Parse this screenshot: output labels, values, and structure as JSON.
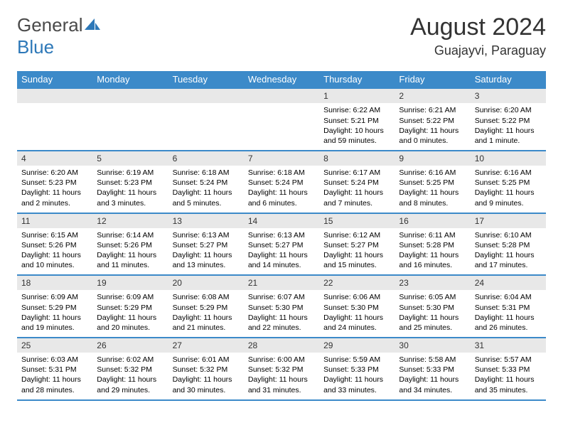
{
  "brand": {
    "part1": "General",
    "part2": "Blue"
  },
  "title": "August 2024",
  "location": "Guajayvi, Paraguay",
  "colors": {
    "header_bg": "#3c8ac9",
    "header_text": "#ffffff",
    "daynum_bg": "#e8e8e8",
    "border": "#3c8ac9",
    "logo_gray": "#4a4a4a",
    "logo_blue": "#2d78b8"
  },
  "day_headers": [
    "Sunday",
    "Monday",
    "Tuesday",
    "Wednesday",
    "Thursday",
    "Friday",
    "Saturday"
  ],
  "weeks": [
    [
      {
        "n": "",
        "lines": []
      },
      {
        "n": "",
        "lines": []
      },
      {
        "n": "",
        "lines": []
      },
      {
        "n": "",
        "lines": []
      },
      {
        "n": "1",
        "lines": [
          "Sunrise: 6:22 AM",
          "Sunset: 5:21 PM",
          "Daylight: 10 hours and 59 minutes."
        ]
      },
      {
        "n": "2",
        "lines": [
          "Sunrise: 6:21 AM",
          "Sunset: 5:22 PM",
          "Daylight: 11 hours and 0 minutes."
        ]
      },
      {
        "n": "3",
        "lines": [
          "Sunrise: 6:20 AM",
          "Sunset: 5:22 PM",
          "Daylight: 11 hours and 1 minute."
        ]
      }
    ],
    [
      {
        "n": "4",
        "lines": [
          "Sunrise: 6:20 AM",
          "Sunset: 5:23 PM",
          "Daylight: 11 hours and 2 minutes."
        ]
      },
      {
        "n": "5",
        "lines": [
          "Sunrise: 6:19 AM",
          "Sunset: 5:23 PM",
          "Daylight: 11 hours and 3 minutes."
        ]
      },
      {
        "n": "6",
        "lines": [
          "Sunrise: 6:18 AM",
          "Sunset: 5:24 PM",
          "Daylight: 11 hours and 5 minutes."
        ]
      },
      {
        "n": "7",
        "lines": [
          "Sunrise: 6:18 AM",
          "Sunset: 5:24 PM",
          "Daylight: 11 hours and 6 minutes."
        ]
      },
      {
        "n": "8",
        "lines": [
          "Sunrise: 6:17 AM",
          "Sunset: 5:24 PM",
          "Daylight: 11 hours and 7 minutes."
        ]
      },
      {
        "n": "9",
        "lines": [
          "Sunrise: 6:16 AM",
          "Sunset: 5:25 PM",
          "Daylight: 11 hours and 8 minutes."
        ]
      },
      {
        "n": "10",
        "lines": [
          "Sunrise: 6:16 AM",
          "Sunset: 5:25 PM",
          "Daylight: 11 hours and 9 minutes."
        ]
      }
    ],
    [
      {
        "n": "11",
        "lines": [
          "Sunrise: 6:15 AM",
          "Sunset: 5:26 PM",
          "Daylight: 11 hours and 10 minutes."
        ]
      },
      {
        "n": "12",
        "lines": [
          "Sunrise: 6:14 AM",
          "Sunset: 5:26 PM",
          "Daylight: 11 hours and 11 minutes."
        ]
      },
      {
        "n": "13",
        "lines": [
          "Sunrise: 6:13 AM",
          "Sunset: 5:27 PM",
          "Daylight: 11 hours and 13 minutes."
        ]
      },
      {
        "n": "14",
        "lines": [
          "Sunrise: 6:13 AM",
          "Sunset: 5:27 PM",
          "Daylight: 11 hours and 14 minutes."
        ]
      },
      {
        "n": "15",
        "lines": [
          "Sunrise: 6:12 AM",
          "Sunset: 5:27 PM",
          "Daylight: 11 hours and 15 minutes."
        ]
      },
      {
        "n": "16",
        "lines": [
          "Sunrise: 6:11 AM",
          "Sunset: 5:28 PM",
          "Daylight: 11 hours and 16 minutes."
        ]
      },
      {
        "n": "17",
        "lines": [
          "Sunrise: 6:10 AM",
          "Sunset: 5:28 PM",
          "Daylight: 11 hours and 17 minutes."
        ]
      }
    ],
    [
      {
        "n": "18",
        "lines": [
          "Sunrise: 6:09 AM",
          "Sunset: 5:29 PM",
          "Daylight: 11 hours and 19 minutes."
        ]
      },
      {
        "n": "19",
        "lines": [
          "Sunrise: 6:09 AM",
          "Sunset: 5:29 PM",
          "Daylight: 11 hours and 20 minutes."
        ]
      },
      {
        "n": "20",
        "lines": [
          "Sunrise: 6:08 AM",
          "Sunset: 5:29 PM",
          "Daylight: 11 hours and 21 minutes."
        ]
      },
      {
        "n": "21",
        "lines": [
          "Sunrise: 6:07 AM",
          "Sunset: 5:30 PM",
          "Daylight: 11 hours and 22 minutes."
        ]
      },
      {
        "n": "22",
        "lines": [
          "Sunrise: 6:06 AM",
          "Sunset: 5:30 PM",
          "Daylight: 11 hours and 24 minutes."
        ]
      },
      {
        "n": "23",
        "lines": [
          "Sunrise: 6:05 AM",
          "Sunset: 5:30 PM",
          "Daylight: 11 hours and 25 minutes."
        ]
      },
      {
        "n": "24",
        "lines": [
          "Sunrise: 6:04 AM",
          "Sunset: 5:31 PM",
          "Daylight: 11 hours and 26 minutes."
        ]
      }
    ],
    [
      {
        "n": "25",
        "lines": [
          "Sunrise: 6:03 AM",
          "Sunset: 5:31 PM",
          "Daylight: 11 hours and 28 minutes."
        ]
      },
      {
        "n": "26",
        "lines": [
          "Sunrise: 6:02 AM",
          "Sunset: 5:32 PM",
          "Daylight: 11 hours and 29 minutes."
        ]
      },
      {
        "n": "27",
        "lines": [
          "Sunrise: 6:01 AM",
          "Sunset: 5:32 PM",
          "Daylight: 11 hours and 30 minutes."
        ]
      },
      {
        "n": "28",
        "lines": [
          "Sunrise: 6:00 AM",
          "Sunset: 5:32 PM",
          "Daylight: 11 hours and 31 minutes."
        ]
      },
      {
        "n": "29",
        "lines": [
          "Sunrise: 5:59 AM",
          "Sunset: 5:33 PM",
          "Daylight: 11 hours and 33 minutes."
        ]
      },
      {
        "n": "30",
        "lines": [
          "Sunrise: 5:58 AM",
          "Sunset: 5:33 PM",
          "Daylight: 11 hours and 34 minutes."
        ]
      },
      {
        "n": "31",
        "lines": [
          "Sunrise: 5:57 AM",
          "Sunset: 5:33 PM",
          "Daylight: 11 hours and 35 minutes."
        ]
      }
    ]
  ]
}
